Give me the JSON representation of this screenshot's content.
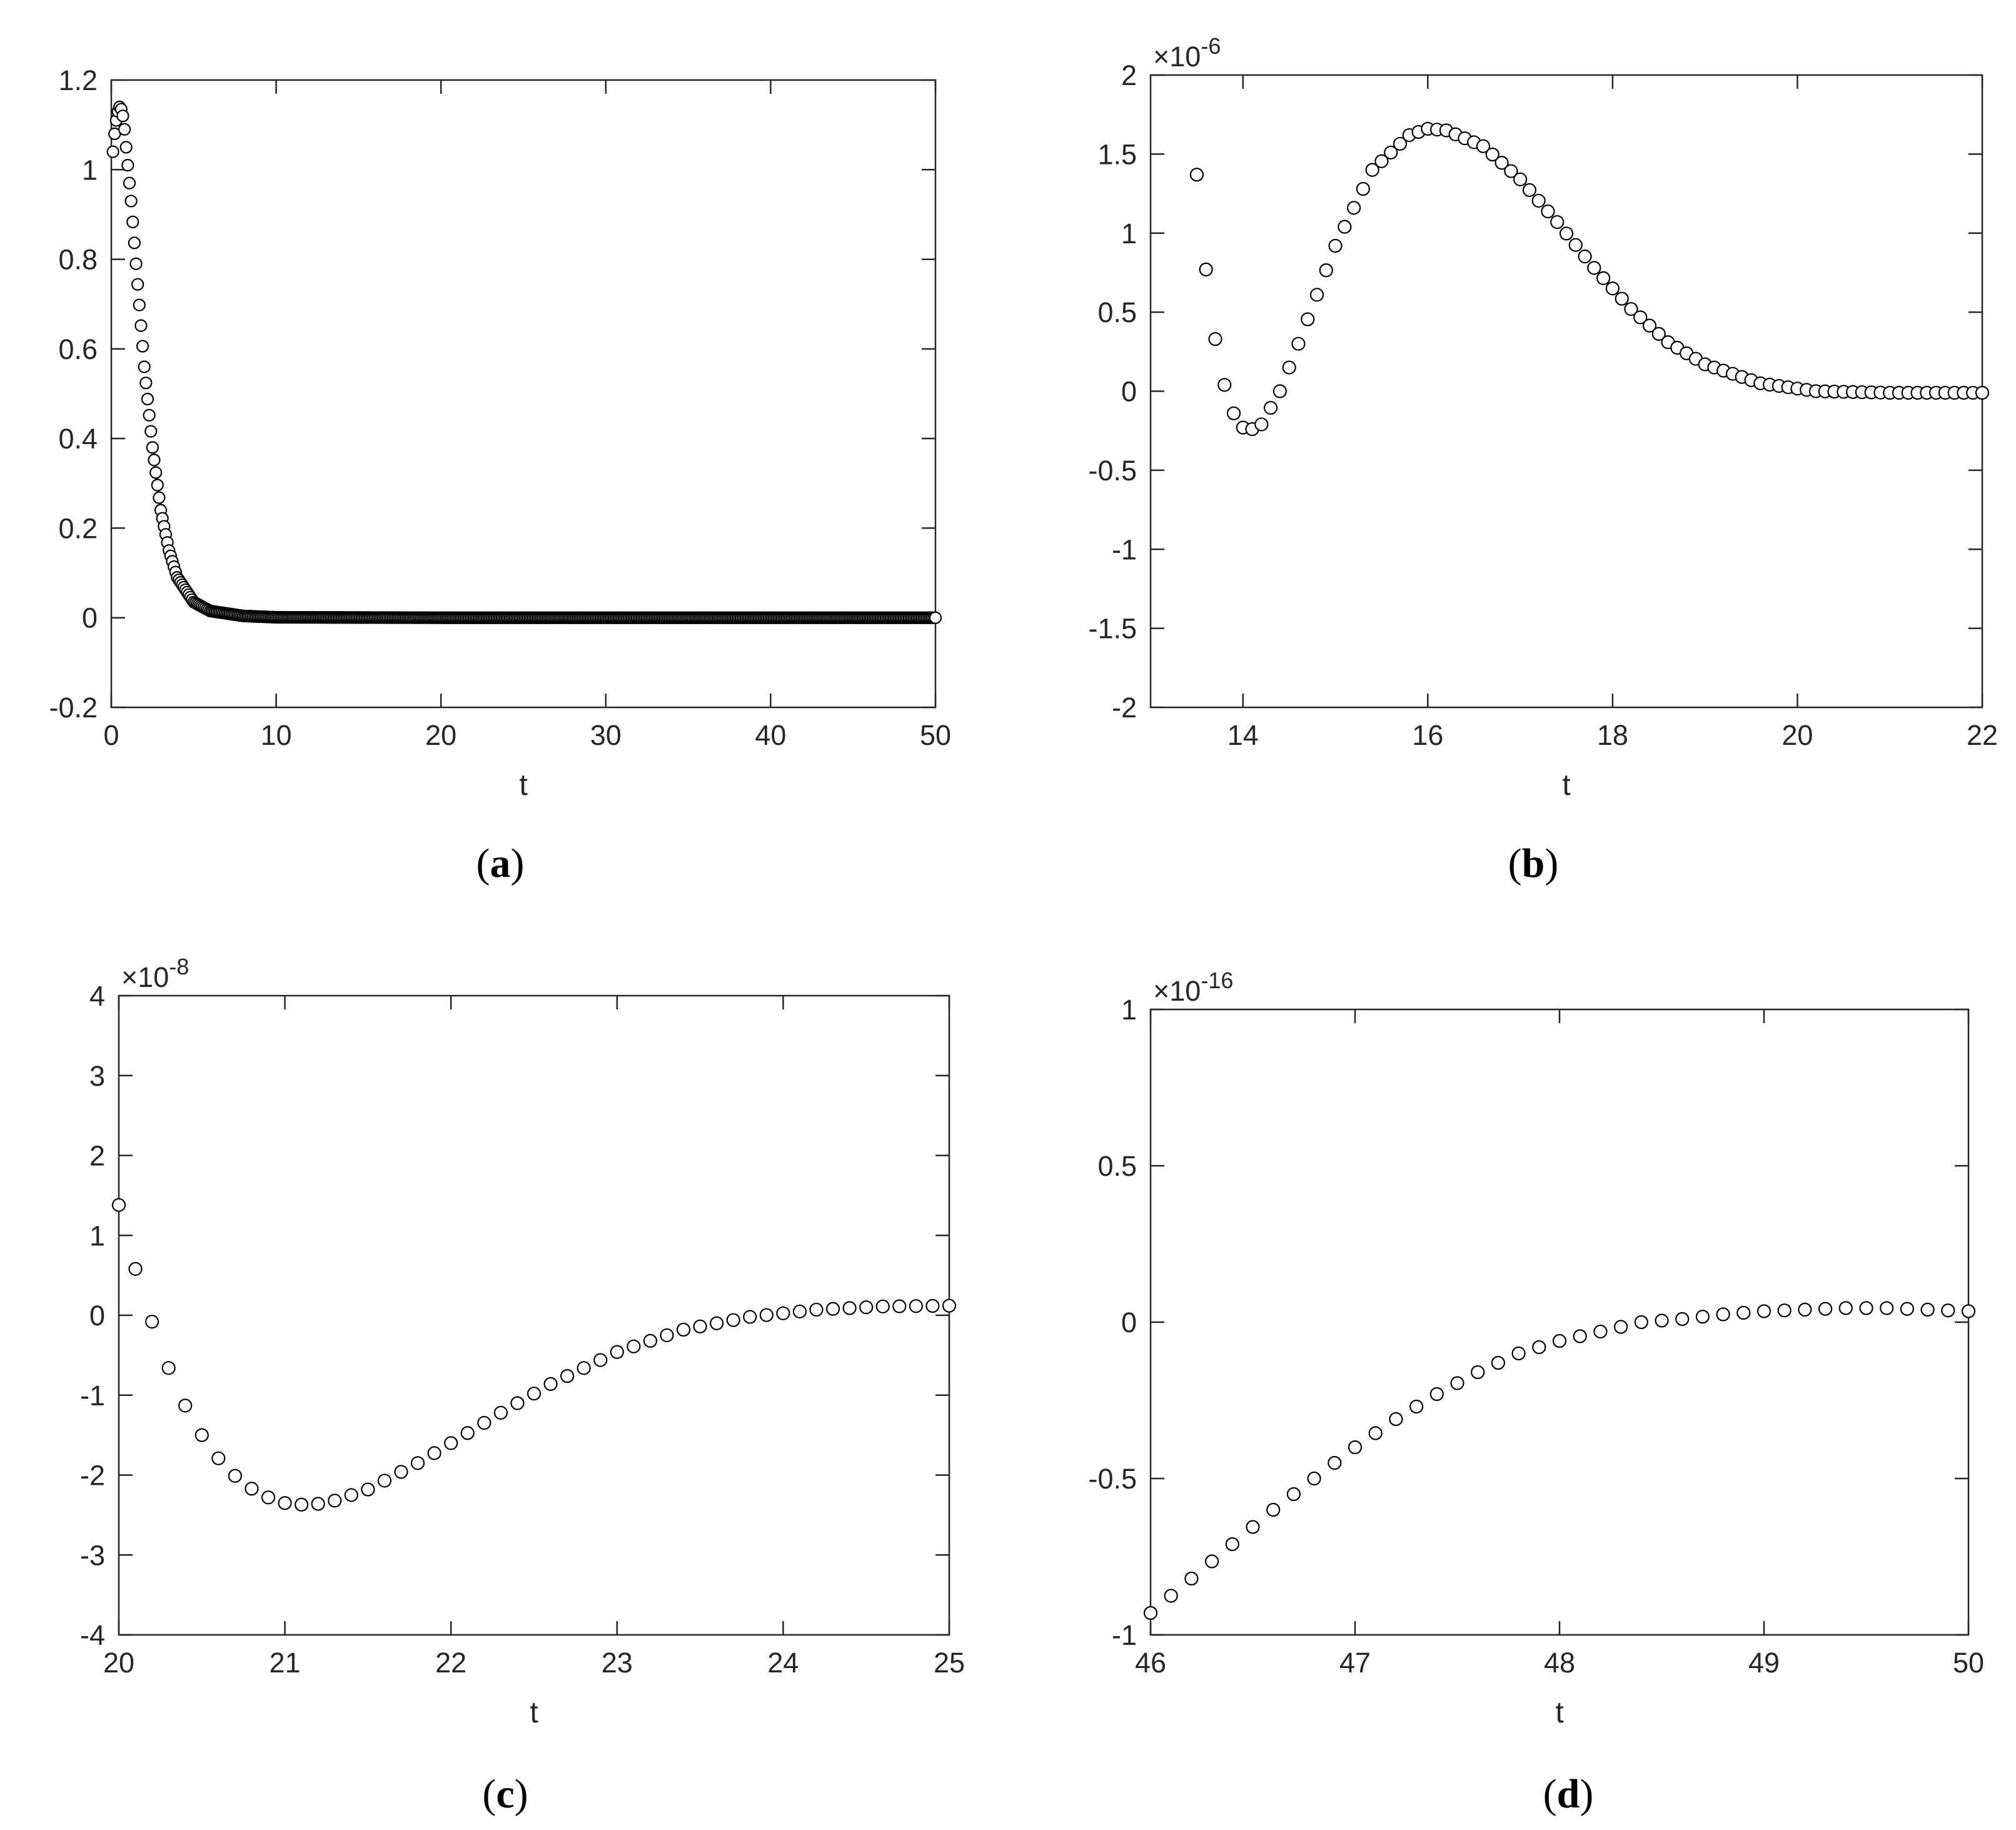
{
  "figure": {
    "captions": [
      "(a)",
      "(b)",
      "(c)",
      "(d)"
    ],
    "caption_letters": [
      "a",
      "b",
      "c",
      "d"
    ]
  },
  "chart_data": [
    {
      "id": "a",
      "type": "scatter",
      "title": "",
      "xlabel": "t",
      "ylabel": "",
      "xlim": [
        0,
        50
      ],
      "ylim": [
        -0.2,
        1.2
      ],
      "xticks": [
        0,
        10,
        20,
        30,
        40,
        50
      ],
      "yticks": [
        -0.2,
        0,
        0.2,
        0.4,
        0.6,
        0.8,
        1,
        1.2
      ],
      "xtick_labels": [
        "0",
        "10",
        "20",
        "30",
        "40",
        "50"
      ],
      "ytick_labels": [
        "-0.2",
        "0",
        "0.2",
        "0.4",
        "0.6",
        "0.8",
        "1",
        "1.2"
      ],
      "exponent_label": "",
      "exponent": "",
      "grid": false,
      "marker": "open-circle",
      "marker_color": "#000000",
      "model": {
        "kind": "decay",
        "start": 0.1,
        "end": 50,
        "step": 0.1
      },
      "x": [
        0.1,
        0.2,
        0.3,
        0.4,
        0.5,
        0.6,
        0.7,
        0.8,
        0.9,
        1.0,
        1.2,
        1.5,
        2.0,
        2.5,
        3.0,
        3.5,
        4.0,
        5.0,
        6.0,
        8.0,
        10,
        20,
        30,
        40,
        50
      ],
      "y": [
        1.04,
        1.08,
        1.11,
        1.13,
        1.14,
        1.135,
        1.12,
        1.09,
        1.05,
        1.01,
        0.93,
        0.79,
        0.56,
        0.38,
        0.24,
        0.15,
        0.09,
        0.035,
        0.015,
        0.004,
        0.001,
        0,
        0,
        0,
        0
      ]
    },
    {
      "id": "b",
      "type": "scatter",
      "title": "",
      "xlabel": "t",
      "ylabel": "",
      "xlim": [
        13,
        22
      ],
      "ylim": [
        -2,
        2
      ],
      "xticks": [
        14,
        16,
        18,
        20,
        22
      ],
      "yticks": [
        -2,
        -1.5,
        -1,
        -0.5,
        0,
        0.5,
        1,
        1.5,
        2
      ],
      "xtick_labels": [
        "14",
        "16",
        "18",
        "20",
        "22"
      ],
      "ytick_labels": [
        "-2",
        "-1.5",
        "-1",
        "-0.5",
        "0",
        "0.5",
        "1",
        "1.5",
        "2"
      ],
      "exponent_label": "×10",
      "exponent": "-6",
      "grid": false,
      "marker": "open-circle",
      "marker_color": "#000000",
      "model": {
        "kind": "bump",
        "start": 13.5,
        "end": 22,
        "step": 0.1
      },
      "x": [
        13.5,
        13.6,
        13.7,
        13.8,
        13.9,
        14.0,
        14.1,
        14.2,
        14.4,
        14.6,
        15.0,
        15.4,
        15.8,
        16.0,
        16.2,
        16.6,
        17.0,
        17.4,
        17.8,
        18.2,
        18.6,
        19.0,
        19.6,
        20.2,
        21.0,
        22.0
      ],
      "y": [
        1.37,
        0.77,
        0.33,
        0.04,
        -0.14,
        -0.23,
        -0.24,
        -0.21,
        0.0,
        0.3,
        0.92,
        1.4,
        1.62,
        1.66,
        1.65,
        1.55,
        1.34,
        1.07,
        0.78,
        0.52,
        0.31,
        0.17,
        0.05,
        0.0,
        -0.01,
        -0.01
      ]
    },
    {
      "id": "c",
      "type": "scatter",
      "title": "",
      "xlabel": "t",
      "ylabel": "",
      "xlim": [
        20,
        25
      ],
      "ylim": [
        -4,
        4
      ],
      "xticks": [
        20,
        21,
        22,
        23,
        24,
        25
      ],
      "yticks": [
        -4,
        -3,
        -2,
        -1,
        0,
        1,
        2,
        3,
        4
      ],
      "xtick_labels": [
        "20",
        "21",
        "22",
        "23",
        "24",
        "25"
      ],
      "ytick_labels": [
        "-4",
        "-3",
        "-2",
        "-1",
        "0",
        "1",
        "2",
        "3",
        "4"
      ],
      "exponent_label": "×10",
      "exponent": "-8",
      "grid": false,
      "marker": "open-circle",
      "marker_color": "#000000",
      "model": {
        "kind": "dip",
        "start": 20,
        "end": 25,
        "step": 0.1
      },
      "x": [
        20.0,
        20.1,
        20.2,
        20.3,
        20.4,
        20.5,
        20.6,
        20.7,
        20.8,
        20.9,
        21.0,
        21.1,
        21.2,
        21.3,
        21.5,
        21.8,
        22.0,
        22.3,
        22.6,
        23.0,
        23.4,
        23.8,
        24.2,
        24.6,
        25.0
      ],
      "y": [
        1.38,
        0.58,
        -0.08,
        -0.66,
        -1.13,
        -1.5,
        -1.79,
        -2.01,
        -2.17,
        -2.28,
        -2.35,
        -2.37,
        -2.36,
        -2.32,
        -2.18,
        -1.85,
        -1.6,
        -1.22,
        -0.86,
        -0.46,
        -0.18,
        -0.02,
        0.07,
        0.11,
        0.12
      ]
    },
    {
      "id": "d",
      "type": "scatter",
      "title": "",
      "xlabel": "t",
      "ylabel": "",
      "xlim": [
        46,
        50
      ],
      "ylim": [
        -1,
        1
      ],
      "xticks": [
        46,
        47,
        48,
        49,
        50
      ],
      "yticks": [
        -1,
        -0.5,
        0,
        0.5,
        1
      ],
      "xtick_labels": [
        "46",
        "47",
        "48",
        "49",
        "50"
      ],
      "ytick_labels": [
        "-1",
        "-0.5",
        "0",
        "0.5",
        "1"
      ],
      "exponent_label": "×10",
      "exponent": "-16",
      "grid": false,
      "marker": "open-circle",
      "marker_color": "#000000",
      "model": {
        "kind": "rise",
        "start": 46,
        "end": 50,
        "step": 0.1
      },
      "x": [
        46.0,
        46.2,
        46.4,
        46.6,
        46.8,
        47.0,
        47.2,
        47.4,
        47.6,
        47.8,
        48.0,
        48.2,
        48.4,
        48.6,
        48.8,
        49.0,
        49.2,
        49.4,
        49.6,
        49.8,
        50.0
      ],
      "y": [
        -0.93,
        -0.82,
        -0.71,
        -0.6,
        -0.5,
        -0.4,
        -0.31,
        -0.23,
        -0.16,
        -0.1,
        -0.06,
        -0.03,
        0.0,
        0.01,
        0.025,
        0.035,
        0.04,
        0.045,
        0.045,
        0.04,
        0.035
      ]
    }
  ]
}
